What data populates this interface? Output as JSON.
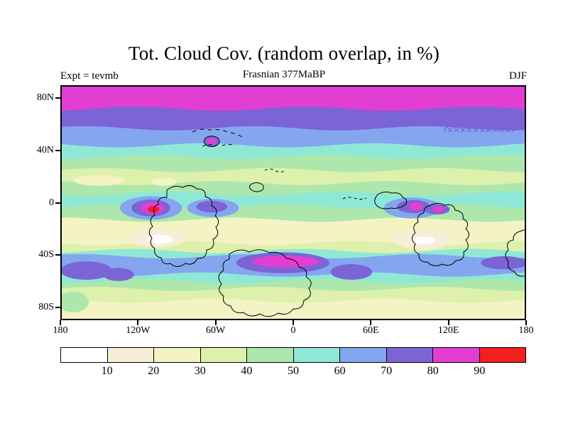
{
  "title": "Tot. Cloud Cov. (random overlap, in %)",
  "header": {
    "experiment": "Expt = tevmb",
    "age": "Frasnian 377MaBP",
    "season": "DJF"
  },
  "chart_data": {
    "type": "heatmap",
    "title": "Tot. Cloud Cov. (random overlap, in %)",
    "experiment_label": "Expt = tevmb",
    "age_label": "Frasnian 377MaBP",
    "season": "DJF",
    "units": "%",
    "lon_range": [
      -180,
      180
    ],
    "lat_range": [
      -90,
      90
    ],
    "x_ticks": [
      {
        "lon": -180,
        "label": "180"
      },
      {
        "lon": -120,
        "label": "120W"
      },
      {
        "lon": -60,
        "label": "60W"
      },
      {
        "lon": 0,
        "label": "0"
      },
      {
        "lon": 60,
        "label": "60E"
      },
      {
        "lon": 120,
        "label": "120E"
      },
      {
        "lon": 180,
        "label": "180"
      }
    ],
    "y_ticks": [
      {
        "lat": 80,
        "label": "80N"
      },
      {
        "lat": 40,
        "label": "40N"
      },
      {
        "lat": 0,
        "label": "0"
      },
      {
        "lat": -40,
        "label": "40S"
      },
      {
        "lat": -80,
        "label": "80S"
      }
    ],
    "colorbar": {
      "labels": [
        "10",
        "20",
        "30",
        "40",
        "50",
        "60",
        "70",
        "80",
        "90"
      ],
      "colors": [
        "#ffffff",
        "#f7eed7",
        "#f3f3c3",
        "#ddf0ac",
        "#aee7ac",
        "#8fe8d5",
        "#84a6ee",
        "#7b64d6",
        "#e23ed2",
        "#f21f1f"
      ]
    },
    "zonal_bands": [
      {
        "lat_top": 90,
        "cloud_pct": 85
      },
      {
        "lat_top": 72,
        "cloud_pct": 75
      },
      {
        "lat_top": 57,
        "cloud_pct": 65
      },
      {
        "lat_top": 44,
        "cloud_pct": 55
      },
      {
        "lat_top": 35,
        "cloud_pct": 45
      },
      {
        "lat_top": 25,
        "cloud_pct": 35
      },
      {
        "lat_top": 15,
        "cloud_pct": 45
      },
      {
        "lat_top": 7,
        "cloud_pct": 55
      },
      {
        "lat_top": -3,
        "cloud_pct": 45
      },
      {
        "lat_top": -13,
        "cloud_pct": 25
      },
      {
        "lat_top": -31,
        "cloud_pct": 35
      },
      {
        "lat_top": -37,
        "cloud_pct": 55
      },
      {
        "lat_top": -41,
        "cloud_pct": 65
      },
      {
        "lat_top": -55,
        "cloud_pct": 55
      },
      {
        "lat_top": -60,
        "cloud_pct": 45
      },
      {
        "lat_top": -66,
        "cloud_pct": 35
      },
      {
        "lat_top": -75,
        "cloud_pct": 25
      }
    ],
    "features": [
      {
        "lon": -160,
        "lat": -52,
        "rx": 20,
        "ry": 7,
        "cloud_pct": 75
      },
      {
        "lon": -135,
        "lat": -55,
        "rx": 12,
        "ry": 5,
        "cloud_pct": 75
      },
      {
        "lon": -8,
        "lat": -46,
        "rx": 36,
        "ry": 8,
        "cloud_pct": 75
      },
      {
        "lon": -6,
        "lat": -45,
        "rx": 26,
        "ry": 4.5,
        "cloud_pct": 85
      },
      {
        "lon": 45,
        "lat": -53,
        "rx": 16,
        "ry": 6,
        "cloud_pct": 75
      },
      {
        "lon": 163,
        "lat": -46,
        "rx": 18,
        "ry": 5,
        "cloud_pct": 75
      },
      {
        "lon": -105,
        "lat": -27,
        "rx": 22,
        "ry": 7,
        "cloud_pct": 15
      },
      {
        "lon": -103,
        "lat": -28,
        "rx": 10,
        "ry": 3.5,
        "cloud_pct": 5
      },
      {
        "lon": 100,
        "lat": -28,
        "rx": 22,
        "ry": 8,
        "cloud_pct": 15
      },
      {
        "lon": 101,
        "lat": -29,
        "rx": 9,
        "ry": 3,
        "cloud_pct": 5
      },
      {
        "lon": -150,
        "lat": 17,
        "rx": 20,
        "ry": 4,
        "cloud_pct": 25
      },
      {
        "lon": -100,
        "lat": 16,
        "rx": 10,
        "ry": 3,
        "cloud_pct": 25
      },
      {
        "lon": -110,
        "lat": -4,
        "rx": 24,
        "ry": 9,
        "cloud_pct": 65
      },
      {
        "lon": -110,
        "lat": -4,
        "rx": 15,
        "ry": 6.5,
        "cloud_pct": 75
      },
      {
        "lon": -109,
        "lat": -4,
        "rx": 9,
        "ry": 4.5,
        "cloud_pct": 85
      },
      {
        "lon": -108,
        "lat": -5,
        "rx": 4.5,
        "ry": 2.5,
        "cloud_pct": 95
      },
      {
        "lon": -62,
        "lat": -4,
        "rx": 20,
        "ry": 7,
        "cloud_pct": 65
      },
      {
        "lon": -63,
        "lat": -3,
        "rx": 12,
        "ry": 4.5,
        "cloud_pct": 75
      },
      {
        "lon": 92,
        "lat": -4,
        "rx": 22,
        "ry": 8,
        "cloud_pct": 65
      },
      {
        "lon": 93,
        "lat": -3,
        "rx": 13,
        "ry": 5,
        "cloud_pct": 75
      },
      {
        "lon": 95,
        "lat": -3,
        "rx": 5.5,
        "ry": 3,
        "cloud_pct": 85
      },
      {
        "lon": 111,
        "lat": -5,
        "rx": 10,
        "ry": 4,
        "cloud_pct": 75
      },
      {
        "lon": 112,
        "lat": -5,
        "rx": 4.5,
        "ry": 2.5,
        "cloud_pct": 85
      },
      {
        "lon": -63,
        "lat": 47,
        "rx": 6,
        "ry": 4,
        "cloud_pct": 75,
        "outline": true
      },
      {
        "lon": -63,
        "lat": 47,
        "rx": 3.5,
        "ry": 2.5,
        "cloud_pct": 85
      },
      {
        "lon": -170,
        "lat": -76,
        "rx": 12,
        "ry": 8,
        "cloud_pct": 45
      }
    ]
  }
}
